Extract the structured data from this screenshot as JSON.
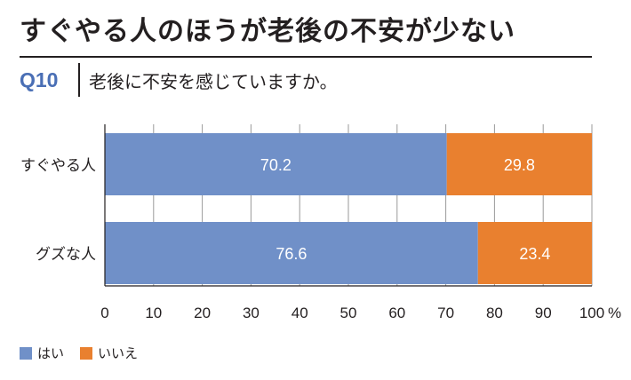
{
  "title": "すぐやる人のほうが老後の不安が少ない",
  "question": {
    "number": "Q10",
    "text": "老後に不安を感じていますか。"
  },
  "chart_data": {
    "type": "bar",
    "orientation": "horizontal",
    "stacked": true,
    "categories": [
      "すぐやる人",
      "グズな人"
    ],
    "series": [
      {
        "name": "はい",
        "values": [
          70.2,
          76.6
        ],
        "color": "#7090c8"
      },
      {
        "name": "いいえ",
        "values": [
          29.8,
          23.4
        ],
        "color": "#e9802f"
      }
    ],
    "x_ticks": [
      "0",
      "10",
      "20",
      "30",
      "40",
      "50",
      "60",
      "70",
      "80",
      "90",
      "100"
    ],
    "x_unit": "%",
    "xlim": [
      0,
      100
    ],
    "grid": true,
    "legend_position": "bottom-left"
  }
}
